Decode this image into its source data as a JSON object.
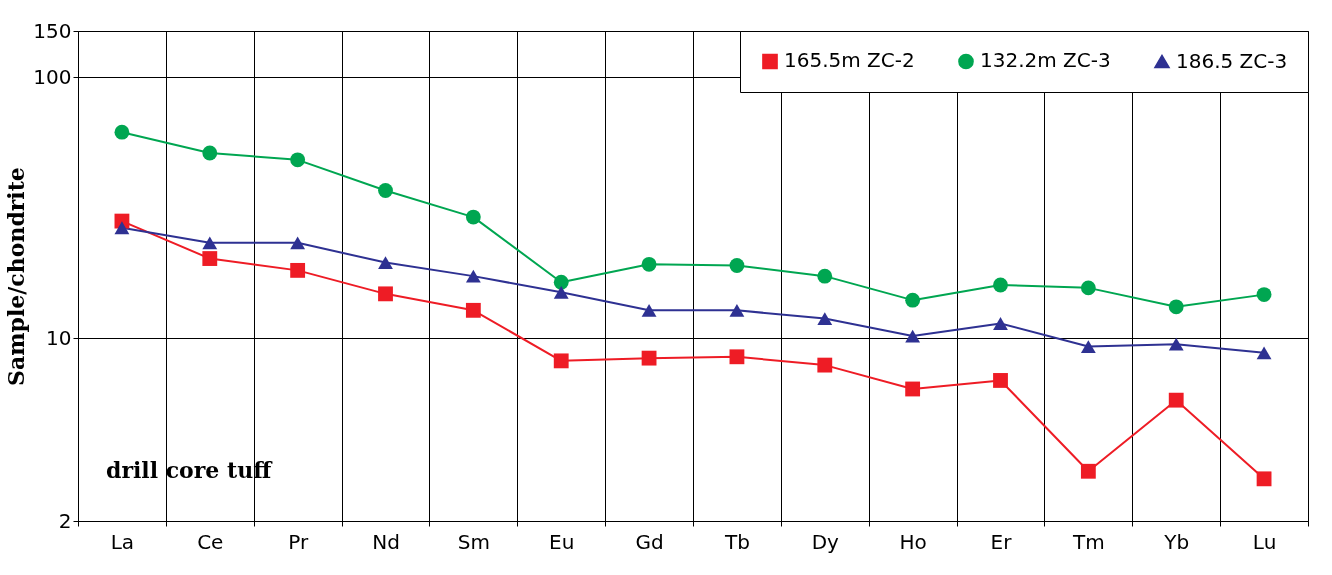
{
  "chart_data": {
    "type": "line",
    "ylabel": "Sample/chondrite",
    "log": "y",
    "ylim": [
      2,
      150
    ],
    "yticks": [
      2,
      10,
      100,
      150
    ],
    "grid": true,
    "legend": "top right",
    "marker": "circle",
    "line_style": "solid",
    "categories": [
      "La",
      "Ce",
      "Pr",
      "Nd",
      "Sm",
      "Eu",
      "Gd",
      "Tb",
      "Dy",
      "Ho",
      "Er",
      "Tm",
      "Yb",
      "Lu"
    ],
    "annotations": [
      "drill core tuff"
    ],
    "series": [
      {
        "name": "165.5m ZC-2",
        "color": "#ee1c25",
        "marker": "square",
        "values": [
          28.1,
          20.2,
          18.2,
          14.8,
          12.8,
          8.2,
          8.4,
          8.5,
          7.9,
          6.4,
          6.9,
          3.1,
          5.8,
          2.9
        ]
      },
      {
        "name": "132.2m ZC-3",
        "color": "#00a651",
        "marker": "circle",
        "values": [
          61.5,
          51.2,
          48.2,
          36.8,
          29.1,
          16.4,
          19.2,
          19.0,
          17.3,
          14.0,
          16.0,
          15.6,
          13.2,
          14.7
        ]
      },
      {
        "name": "186.5 ZC-3",
        "color": "#2e3192",
        "marker": "triangle",
        "values": [
          26.5,
          23.2,
          23.2,
          19.5,
          17.3,
          15.0,
          12.8,
          12.8,
          11.9,
          10.2,
          11.4,
          9.3,
          9.5,
          8.8
        ]
      }
    ]
  }
}
